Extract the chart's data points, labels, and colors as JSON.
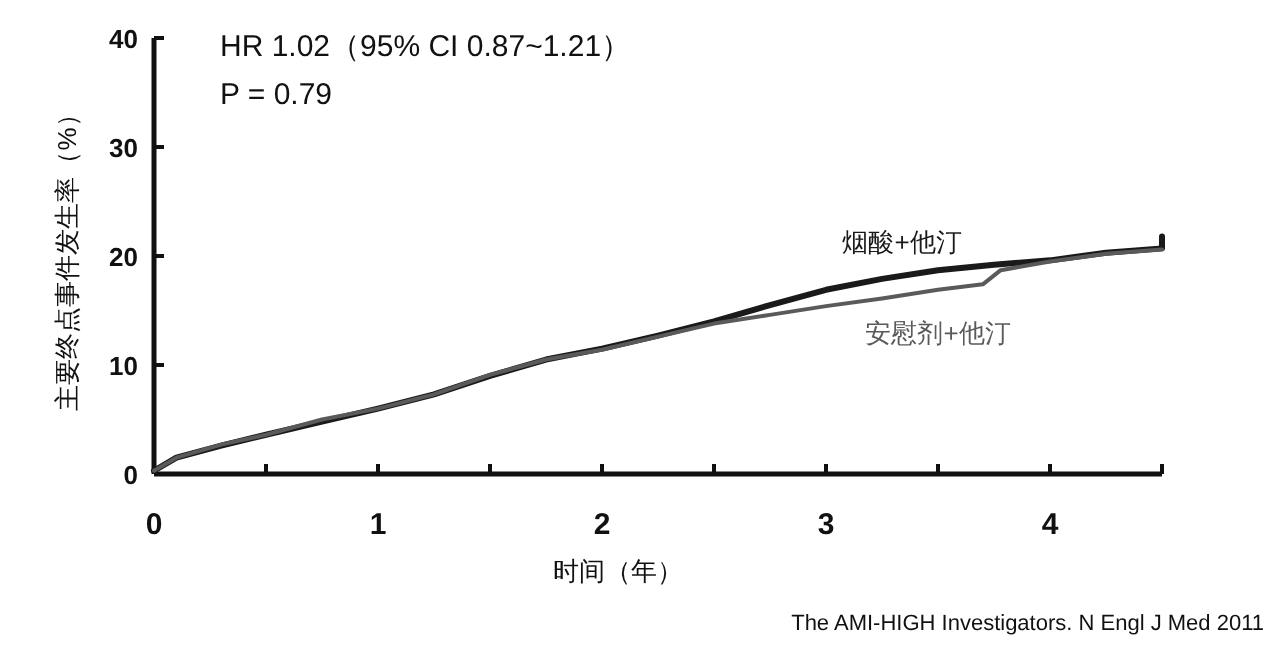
{
  "chart_data": {
    "type": "line",
    "xlabel": "时间（年）",
    "ylabel": "主要终点事件发生率（%）",
    "xlim": [
      0,
      4.5
    ],
    "ylim": [
      0,
      40
    ],
    "xticks": [
      0,
      {
        "value": 0.5,
        "label": null
      },
      1,
      {
        "value": 1.5,
        "label": null
      },
      2,
      {
        "value": 2.5,
        "label": null
      },
      3,
      {
        "value": 3.5,
        "label": null
      },
      4,
      {
        "value": 4.5,
        "label": null
      }
    ],
    "yticks": [
      0,
      10,
      20,
      30,
      40
    ],
    "grid": false,
    "marker": "none",
    "line_style": "solid",
    "annotations": [
      "HR 1.02（95% CI 0.87~1.21）",
      "P = 0.79",
      "The AMI-HIGH Investigators. N Engl J Med 2011"
    ],
    "series": [
      {
        "name": "烟酸+他汀",
        "color": "#1a1a1a",
        "x": [
          0,
          0.1,
          0.3,
          0.5,
          0.75,
          1,
          1.25,
          1.5,
          1.75,
          2,
          2.25,
          2.5,
          2.75,
          3,
          3.25,
          3.5,
          3.75,
          4,
          4.25,
          4.5,
          4.5
        ],
        "values": [
          0.3,
          1.5,
          2.6,
          3.6,
          4.8,
          6.0,
          7.3,
          9.0,
          10.5,
          11.5,
          12.7,
          14.0,
          15.5,
          16.9,
          17.9,
          18.7,
          19.2,
          19.6,
          20.3,
          20.7,
          21.8
        ]
      },
      {
        "name": "安慰剂+他汀",
        "color": "#5a5a5a",
        "x": [
          0,
          0.1,
          0.3,
          0.5,
          0.75,
          1,
          1.25,
          1.5,
          1.75,
          2,
          2.25,
          2.5,
          2.75,
          3,
          3.25,
          3.5,
          3.7,
          3.78,
          4,
          4.25,
          4.5
        ],
        "values": [
          0.3,
          1.5,
          2.7,
          3.6,
          5.0,
          6.0,
          7.3,
          9.1,
          10.5,
          11.4,
          12.6,
          13.8,
          14.6,
          15.4,
          16.1,
          16.9,
          17.4,
          18.7,
          19.5,
          20.2,
          20.6
        ]
      }
    ]
  }
}
